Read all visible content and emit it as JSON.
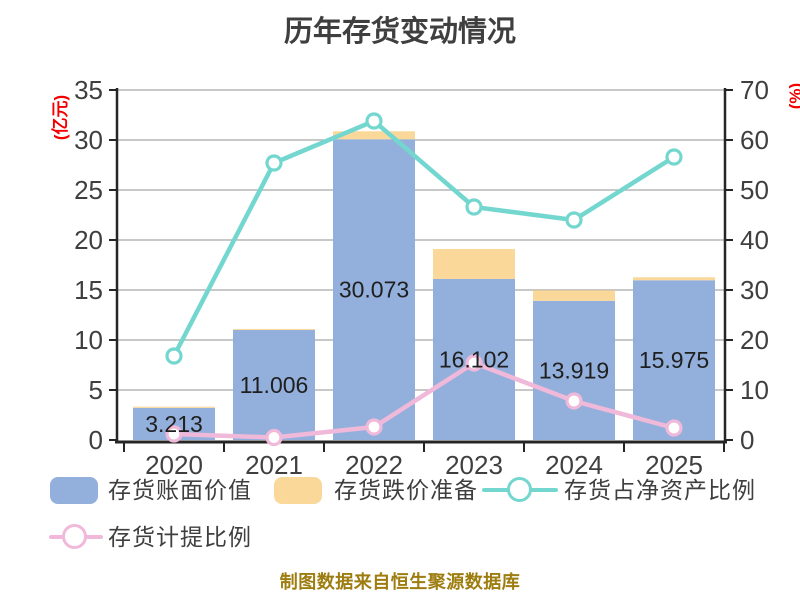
{
  "chart_data": {
    "type": "combo-bar-line",
    "title": "历年存货变动情况",
    "categories": [
      "2020",
      "2021",
      "2022",
      "2023",
      "2024",
      "2025"
    ],
    "series": [
      {
        "name": "存货账面价值",
        "type": "bar",
        "axis": "left",
        "color": "#93AFDB",
        "values": [
          3.213,
          11.006,
          30.073,
          16.102,
          13.919,
          15.975
        ],
        "data_labels": [
          "3.213",
          "11.006",
          "30.073",
          "16.102",
          "13.919",
          "15.975"
        ]
      },
      {
        "name": "存货跌价准备",
        "type": "bar",
        "axis": "left",
        "color": "#FAD89A",
        "stacked_on": "存货账面价值",
        "values": [
          0.12,
          0.1,
          0.8,
          3.0,
          1.05,
          0.3
        ],
        "estimated": true
      },
      {
        "name": "存货占净资产比例",
        "type": "line",
        "axis": "right",
        "color": "#73D7D0",
        "values": [
          16.8,
          55.4,
          63.8,
          46.6,
          44.0,
          56.6
        ],
        "estimated": true
      },
      {
        "name": "存货计提比例",
        "type": "line",
        "axis": "right",
        "color": "#F0B9D9",
        "values": [
          1.2,
          0.5,
          2.6,
          15.4,
          7.8,
          2.4
        ],
        "estimated": true
      }
    ],
    "left_axis": {
      "unit_label": "(亿元)",
      "min": 0,
      "max": 35,
      "step": 5,
      "ticks": [
        "0",
        "5",
        "10",
        "15",
        "20",
        "25",
        "30",
        "35"
      ]
    },
    "right_axis": {
      "unit_label": "(%)",
      "min": 0,
      "max": 70,
      "step": 10,
      "ticks": [
        "0",
        "10",
        "20",
        "30",
        "40",
        "50",
        "60",
        "70"
      ]
    },
    "grid": "horizontal",
    "legend_position": "bottom-left"
  },
  "legend": {
    "items": [
      {
        "label": "存货账面价值",
        "swatch": "bar",
        "color": "#93AFDB"
      },
      {
        "label": "存货跌价准备",
        "swatch": "bar",
        "color": "#FAD89A"
      },
      {
        "label": "存货占净资产比例",
        "swatch": "line-marker",
        "color": "#73D7D0"
      },
      {
        "label": "存货计提比例",
        "swatch": "line-marker",
        "color": "#F0B9D9"
      }
    ]
  },
  "footer": {
    "source_note": "制图数据来自恒生聚源数据库"
  },
  "colors": {
    "title_text": "#3F3F3F",
    "tick_text": "#3F3F3F",
    "axis_line": "#262626",
    "gridline": "#A6A6A6",
    "bar_value_label": "#1F1F1F",
    "axis_unit_label": "#F20000",
    "footer_text": "#9E7D10",
    "background": "#FFFFFF"
  }
}
